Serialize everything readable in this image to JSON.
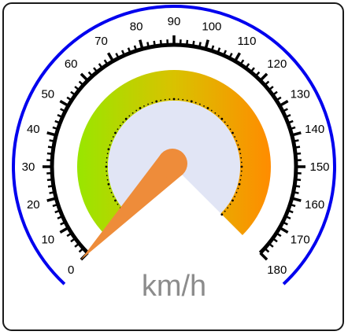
{
  "gauge": {
    "unit": "km/h",
    "min": 0,
    "max": 180,
    "value": 0,
    "major_step": 10,
    "minor_per_major": 5,
    "tick_labels": [
      "0",
      "10",
      "20",
      "30",
      "40",
      "50",
      "60",
      "70",
      "80",
      "90",
      "100",
      "110",
      "120",
      "130",
      "140",
      "150",
      "160",
      "170",
      "180"
    ],
    "colors": {
      "outer_arc": "#0000ee",
      "scale": "#000000",
      "band_start": "#99e600",
      "band_mid": "#d9c200",
      "band_end": "#ff8c00",
      "dial_face": "#e1e5f5",
      "needle": "#ee8c3a"
    }
  }
}
